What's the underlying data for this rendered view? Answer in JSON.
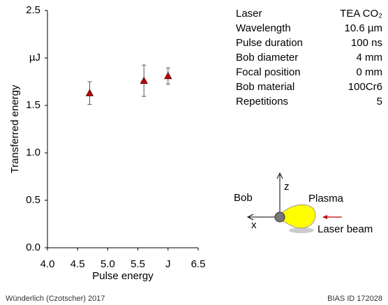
{
  "chart_data": {
    "type": "scatter",
    "xlabel": "Pulse energy",
    "ylabel": "Transferred energy",
    "x": [
      4.7,
      5.6,
      6.0
    ],
    "values": [
      1.63,
      1.76,
      1.81
    ],
    "errors": [
      0.12,
      0.165,
      0.085
    ],
    "color": "#c00000",
    "xlim": [
      4.0,
      6.5
    ],
    "xticks": [
      {
        "value": 4,
        "label": "4.0"
      },
      4.5,
      {
        "value": 5,
        "label": "5.0"
      },
      5.5,
      {
        "value": 6,
        "label": "J"
      },
      6.5
    ],
    "ylim": [
      0,
      2.5
    ],
    "yticks": [
      {
        "value": 0,
        "label": "0.0"
      },
      0.5,
      {
        "value": 1,
        "label": "1.0"
      },
      1.5,
      {
        "value": 2,
        "label": "µJ"
      },
      2.5
    ]
  },
  "parameters": {
    "rows": [
      [
        "Laser",
        "TEA CO₂"
      ],
      [
        "Wavelength",
        "10.6 µm"
      ],
      [
        "Pulse duration",
        "100 ns"
      ],
      [
        "Bob diameter",
        "4 mm"
      ],
      [
        "Focal position",
        "0 mm"
      ],
      [
        "Bob material",
        "100Cr6"
      ],
      [
        "Repetitions",
        "5"
      ]
    ]
  },
  "diagram": {
    "bob": "Bob",
    "z": "z",
    "plasma": "Plasma",
    "x": "x",
    "laser": "Laser beam"
  },
  "footer": {
    "left": "Wünderlich (Czotscher) 2017",
    "right": "BIAS ID 172028"
  }
}
